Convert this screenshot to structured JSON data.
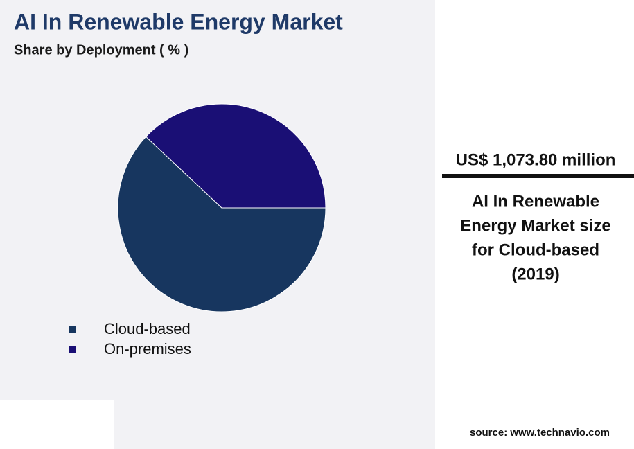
{
  "chart_data": {
    "type": "pie",
    "title": "AI In Renewable Energy Market",
    "subtitle": "Share by Deployment ( % )",
    "categories": [
      "Cloud-based",
      "On-premises"
    ],
    "values": [
      62,
      38
    ],
    "colors": [
      "#17365f",
      "#1a0f75"
    ]
  },
  "highlight": {
    "value": "US$ 1,073.80 million",
    "caption": [
      "AI In Renewable",
      "Energy Market size",
      "for Cloud-based",
      "(2019)"
    ]
  },
  "source": "source: www.technavio.com"
}
